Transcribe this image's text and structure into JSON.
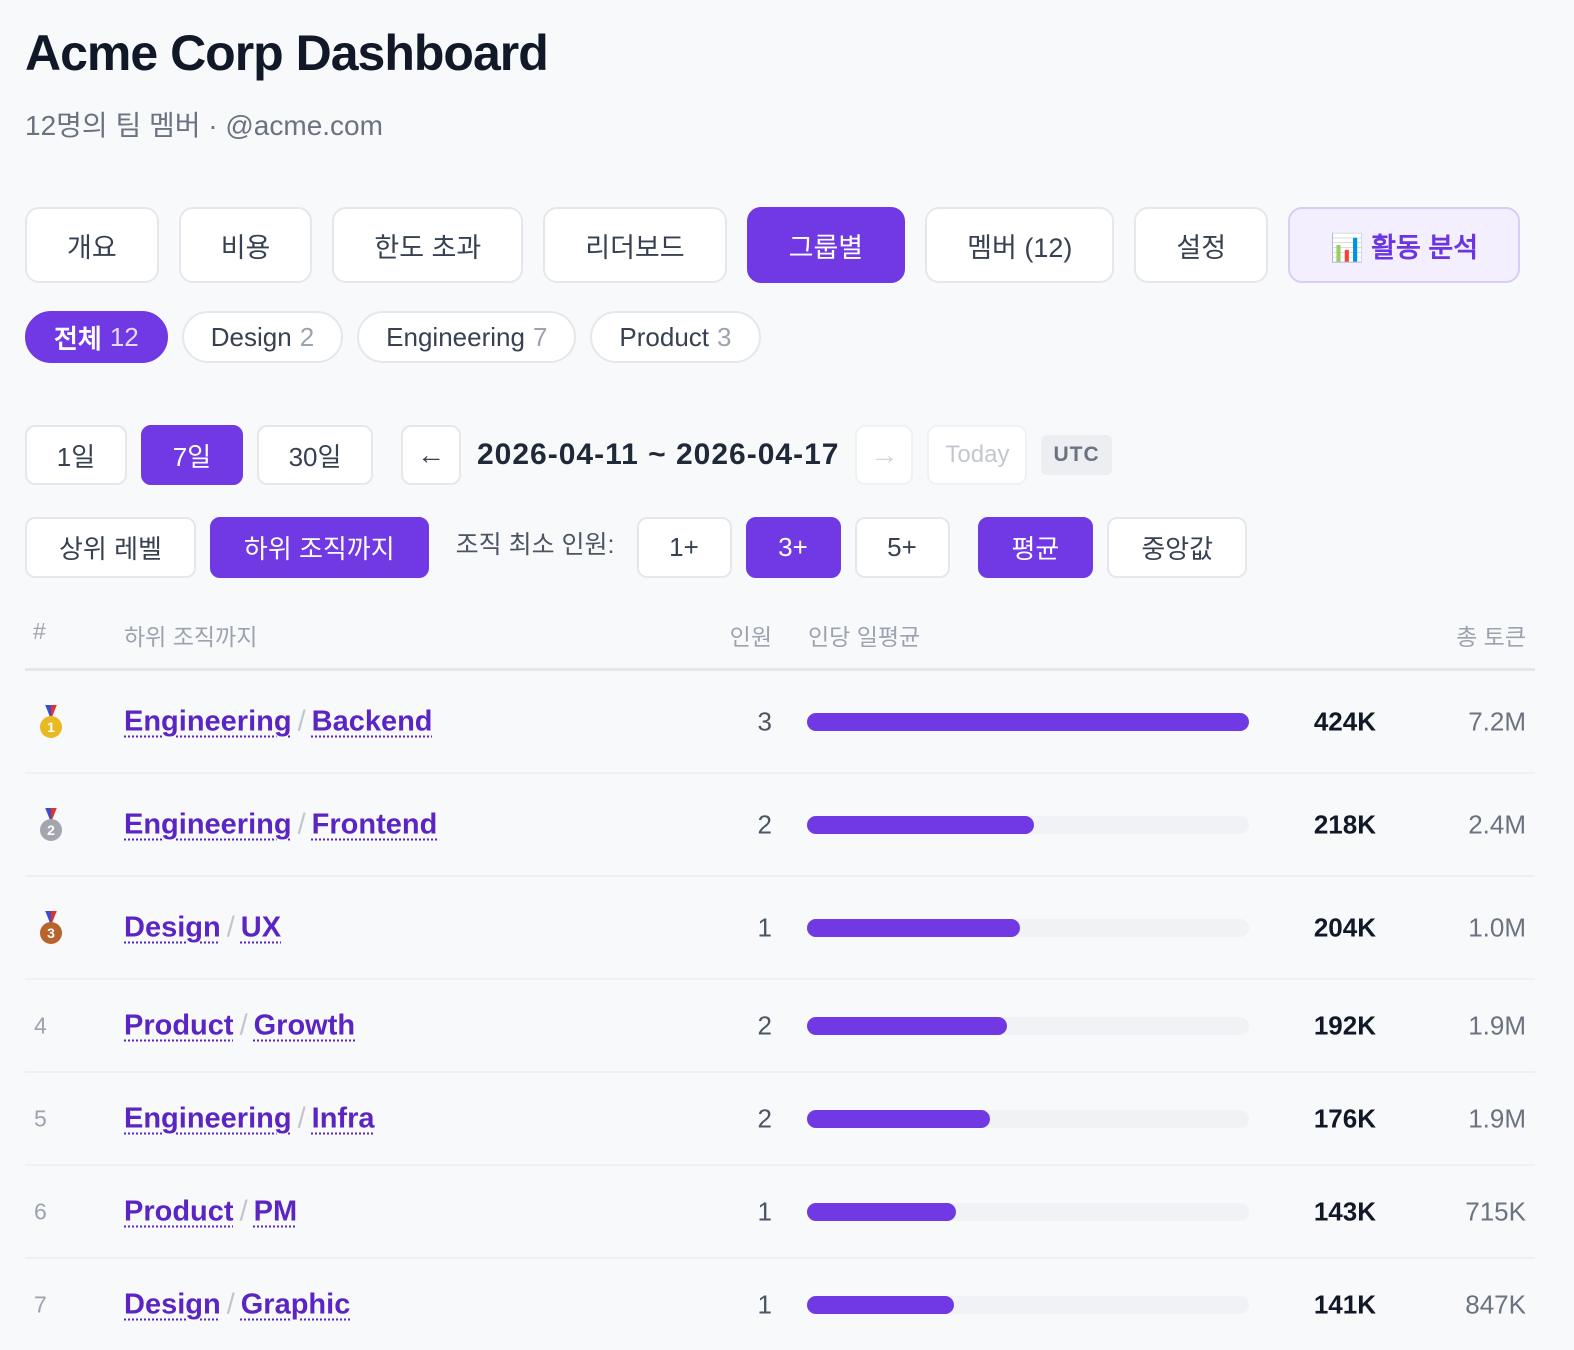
{
  "header": {
    "title": "Acme Corp Dashboard",
    "subtitle": "12명의 팀 멤버 · @acme.com"
  },
  "tabs": [
    "개요",
    "비용",
    "한도 초과",
    "리더보드",
    "그룹별",
    "멤버 (12)",
    "설정",
    "📊 활동 분석"
  ],
  "active_tab": 4,
  "highlight_tab": 7,
  "group_filters": [
    {
      "label": "전체",
      "count": 12
    },
    {
      "label": "Design",
      "count": 2
    },
    {
      "label": "Engineering",
      "count": 7
    },
    {
      "label": "Product",
      "count": 3
    }
  ],
  "active_group_filter": 0,
  "periods": [
    "1일",
    "7일",
    "30일"
  ],
  "active_period": 1,
  "date_nav": {
    "prev": "←",
    "range": "2026-04-11 ~ 2026-04-17",
    "next": "→",
    "today": "Today",
    "timezone": "UTC"
  },
  "scopes": [
    "상위 레벨",
    "하위 조직까지"
  ],
  "active_scope": 1,
  "min_members": {
    "label": "조직 최소 인원:",
    "options": [
      "1+",
      "3+",
      "5+"
    ],
    "active": 1
  },
  "stats": [
    "평균",
    "중앙값"
  ],
  "active_stat": 0,
  "table": {
    "headers": [
      "#",
      "하위 조직까지",
      "인원",
      "인당 일평균",
      "총 토큰"
    ],
    "rows": [
      {
        "rank": 1,
        "group": "Engineering",
        "team": "Backend",
        "members": 3,
        "avg": {
          "value": 424000,
          "label": "424K"
        },
        "total": "7.2M"
      },
      {
        "rank": 2,
        "group": "Engineering",
        "team": "Frontend",
        "members": 2,
        "avg": {
          "value": 218000,
          "label": "218K"
        },
        "total": "2.4M"
      },
      {
        "rank": 3,
        "group": "Design",
        "team": "UX",
        "members": 1,
        "avg": {
          "value": 204000,
          "label": "204K"
        },
        "total": "1.0M"
      },
      {
        "rank": 4,
        "group": "Product",
        "team": "Growth",
        "members": 2,
        "avg": {
          "value": 192000,
          "label": "192K"
        },
        "total": "1.9M"
      },
      {
        "rank": 5,
        "group": "Engineering",
        "team": "Infra",
        "members": 2,
        "avg": {
          "value": 176000,
          "label": "176K"
        },
        "total": "1.9M"
      },
      {
        "rank": 6,
        "group": "Product",
        "team": "PM",
        "members": 1,
        "avg": {
          "value": 143000,
          "label": "143K"
        },
        "total": "715K"
      },
      {
        "rank": 7,
        "group": "Design",
        "team": "Graphic",
        "members": 1,
        "avg": {
          "value": 141000,
          "label": "141K"
        },
        "total": "847K"
      }
    ]
  }
}
